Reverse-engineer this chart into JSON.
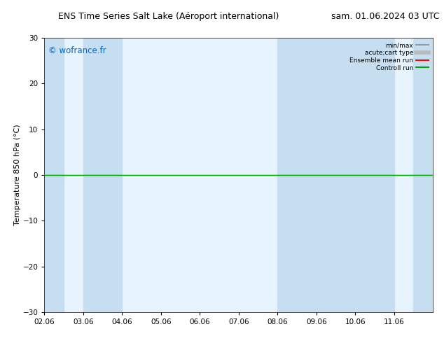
{
  "title_left": "ENS Time Series Salt Lake (Aéroport international)",
  "title_right": "sam. 01.06.2024 03 UTC",
  "ylabel": "Temperature 850 hPa (°C)",
  "ylim": [
    -30,
    30
  ],
  "yticks": [
    -30,
    -20,
    -10,
    0,
    10,
    20,
    30
  ],
  "xtick_labels": [
    "02.06",
    "03.06",
    "04.06",
    "05.06",
    "06.06",
    "07.06",
    "08.06",
    "09.06",
    "10.06",
    "11.06"
  ],
  "num_xticks": 10,
  "xlim": [
    0,
    10
  ],
  "watermark": "© wofrance.fr",
  "watermark_color": "#0066cc",
  "bg_color": "#ffffff",
  "plot_bg_color": "#ddeef8",
  "shaded_bands_white": [
    {
      "xmin": 0.5,
      "xmax": 1.5
    },
    {
      "xmin": 2.5,
      "xmax": 4.5
    },
    {
      "xmin": 5.5,
      "xmax": 7.5
    },
    {
      "xmin": 9.5,
      "xmax": 10.0
    }
  ],
  "shaded_blue": "#cce0f0",
  "hline_y": 0,
  "hline_color": "#000000",
  "green_line_color": "#00aa00",
  "red_line_color": "#ff0000",
  "legend_entries": [
    {
      "label": "min/max",
      "color": "#999999",
      "lw": 1.5
    },
    {
      "label": "acute;cart type",
      "color": "#bbbbbb",
      "lw": 4
    },
    {
      "label": "Ensemble mean run",
      "color": "#ff0000",
      "lw": 1.5
    },
    {
      "label": "Controll run",
      "color": "#00aa00",
      "lw": 1.5
    }
  ],
  "title_fontsize": 9,
  "axis_fontsize": 8,
  "tick_fontsize": 7.5,
  "watermark_fontsize": 8.5
}
